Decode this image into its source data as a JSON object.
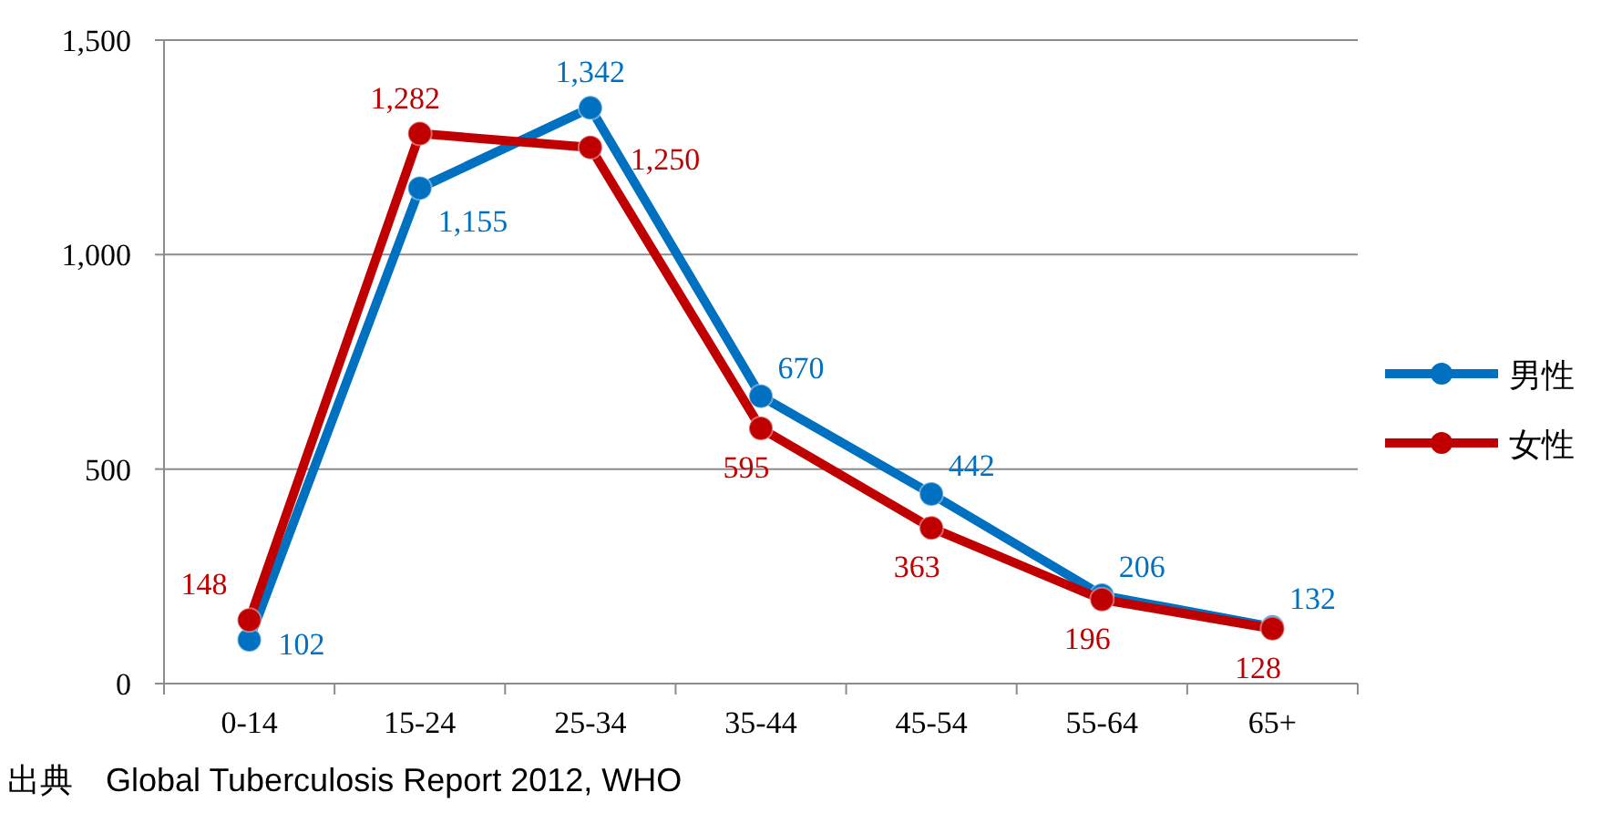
{
  "chart_data": {
    "type": "line",
    "categories": [
      "0-14",
      "15-24",
      "25-34",
      "35-44",
      "45-54",
      "55-64",
      "65+"
    ],
    "series": [
      {
        "name": "男性",
        "color": "#0070c0",
        "values": [
          102,
          1155,
          1342,
          670,
          442,
          206,
          132
        ],
        "value_labels": [
          "102",
          "1,155",
          "1,342",
          "670",
          "442",
          "206",
          "132"
        ]
      },
      {
        "name": "女性",
        "color": "#c00000",
        "values": [
          148,
          1282,
          1250,
          595,
          363,
          196,
          128
        ],
        "value_labels": [
          "148",
          "1,282",
          "1,250",
          "595",
          "363",
          "196",
          "128"
        ]
      }
    ],
    "ylim": [
      0,
      1500
    ],
    "yticks": [
      0,
      {
        "value": 500,
        "label": "500"
      },
      {
        "value": 1000,
        "label": "1,000"
      },
      {
        "value": 1500,
        "label": "1,500"
      }
    ],
    "grid": "y",
    "legend": "right",
    "marker": "circle",
    "line_style": "solid",
    "annotations": [
      "出典　Global Tuberculosis Report 2012, WHO"
    ]
  }
}
